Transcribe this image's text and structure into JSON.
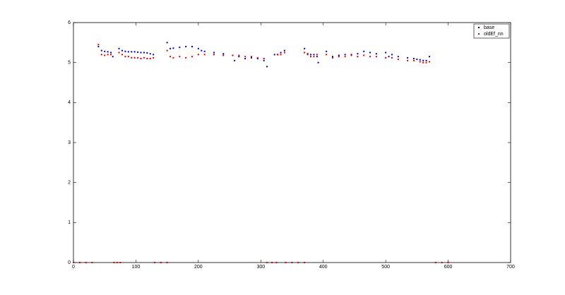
{
  "chart_data": {
    "type": "scatter",
    "xlim": [
      0,
      700
    ],
    "xticks": [
      0,
      100,
      200,
      300,
      400,
      500,
      600,
      700
    ],
    "ylim": [
      0,
      6
    ],
    "yticks": [
      0,
      1,
      2,
      3,
      4,
      5,
      6
    ],
    "legend": "upper right",
    "series": [
      {
        "name": "base",
        "color": "#0000c0",
        "x": [
          40,
          45,
          50,
          55,
          60,
          63,
          73,
          78,
          83,
          88,
          93,
          98,
          103,
          108,
          113,
          118,
          123,
          128,
          150,
          155,
          160,
          170,
          180,
          190,
          200,
          205,
          210,
          225,
          240,
          255,
          258,
          265,
          275,
          285,
          295,
          305,
          310,
          322,
          327,
          332,
          338,
          370,
          375,
          380,
          385,
          390,
          392,
          405,
          415,
          425,
          435,
          445,
          455,
          465,
          475,
          485,
          500,
          505,
          510,
          520,
          535,
          545,
          550,
          555,
          560,
          565,
          570
        ],
        "values": [
          5.4,
          5.3,
          5.28,
          5.27,
          5.25,
          5.15,
          5.35,
          5.3,
          5.28,
          5.27,
          5.27,
          5.27,
          5.26,
          5.25,
          5.25,
          5.24,
          5.22,
          5.2,
          5.5,
          5.35,
          5.36,
          5.38,
          5.4,
          5.4,
          5.35,
          5.3,
          5.28,
          5.25,
          5.22,
          5.18,
          5.05,
          5.15,
          5.1,
          5.12,
          5.1,
          5.05,
          4.9,
          5.2,
          5.2,
          5.25,
          5.3,
          5.35,
          5.22,
          5.2,
          5.2,
          5.15,
          5.0,
          5.28,
          5.15,
          5.18,
          5.2,
          5.2,
          5.22,
          5.28,
          5.25,
          5.22,
          5.25,
          5.15,
          5.2,
          5.15,
          5.12,
          5.1,
          5.08,
          5.07,
          5.05,
          5.05,
          5.15
        ]
      },
      {
        "name": "oldEf_nn",
        "color": "#e00000",
        "x": [
          0,
          10,
          20,
          30,
          40,
          45,
          50,
          55,
          60,
          65,
          70,
          73,
          75,
          78,
          83,
          88,
          93,
          98,
          103,
          108,
          113,
          118,
          123,
          128,
          130,
          140,
          150,
          150,
          155,
          160,
          170,
          180,
          190,
          200,
          210,
          225,
          240,
          255,
          265,
          275,
          285,
          295,
          305,
          310,
          318,
          325,
          327,
          332,
          338,
          340,
          350,
          360,
          370,
          370,
          375,
          380,
          385,
          390,
          405,
          415,
          425,
          435,
          445,
          455,
          465,
          475,
          485,
          500,
          510,
          520,
          535,
          545,
          555,
          560,
          565,
          570,
          580,
          590,
          600
        ],
        "values": [
          0,
          0,
          0,
          0,
          5.45,
          5.2,
          5.18,
          5.2,
          5.2,
          0,
          0,
          5.25,
          0,
          5.2,
          5.15,
          5.15,
          5.12,
          5.12,
          5.12,
          5.1,
          5.12,
          5.1,
          5.1,
          5.12,
          0,
          0,
          0,
          5.3,
          5.15,
          5.12,
          5.15,
          5.12,
          5.15,
          5.2,
          5.2,
          5.2,
          5.18,
          5.18,
          5.18,
          5.15,
          5.15,
          5.12,
          5.1,
          0,
          0,
          0,
          5.2,
          5.2,
          5.25,
          0,
          0,
          0,
          0,
          5.25,
          5.2,
          5.15,
          5.15,
          5.2,
          5.2,
          5.12,
          5.15,
          5.15,
          5.18,
          5.15,
          5.18,
          5.15,
          5.15,
          5.12,
          5.12,
          5.08,
          5.05,
          5.05,
          5.02,
          5.0,
          5.0,
          5.02,
          0,
          0,
          0
        ]
      }
    ]
  }
}
